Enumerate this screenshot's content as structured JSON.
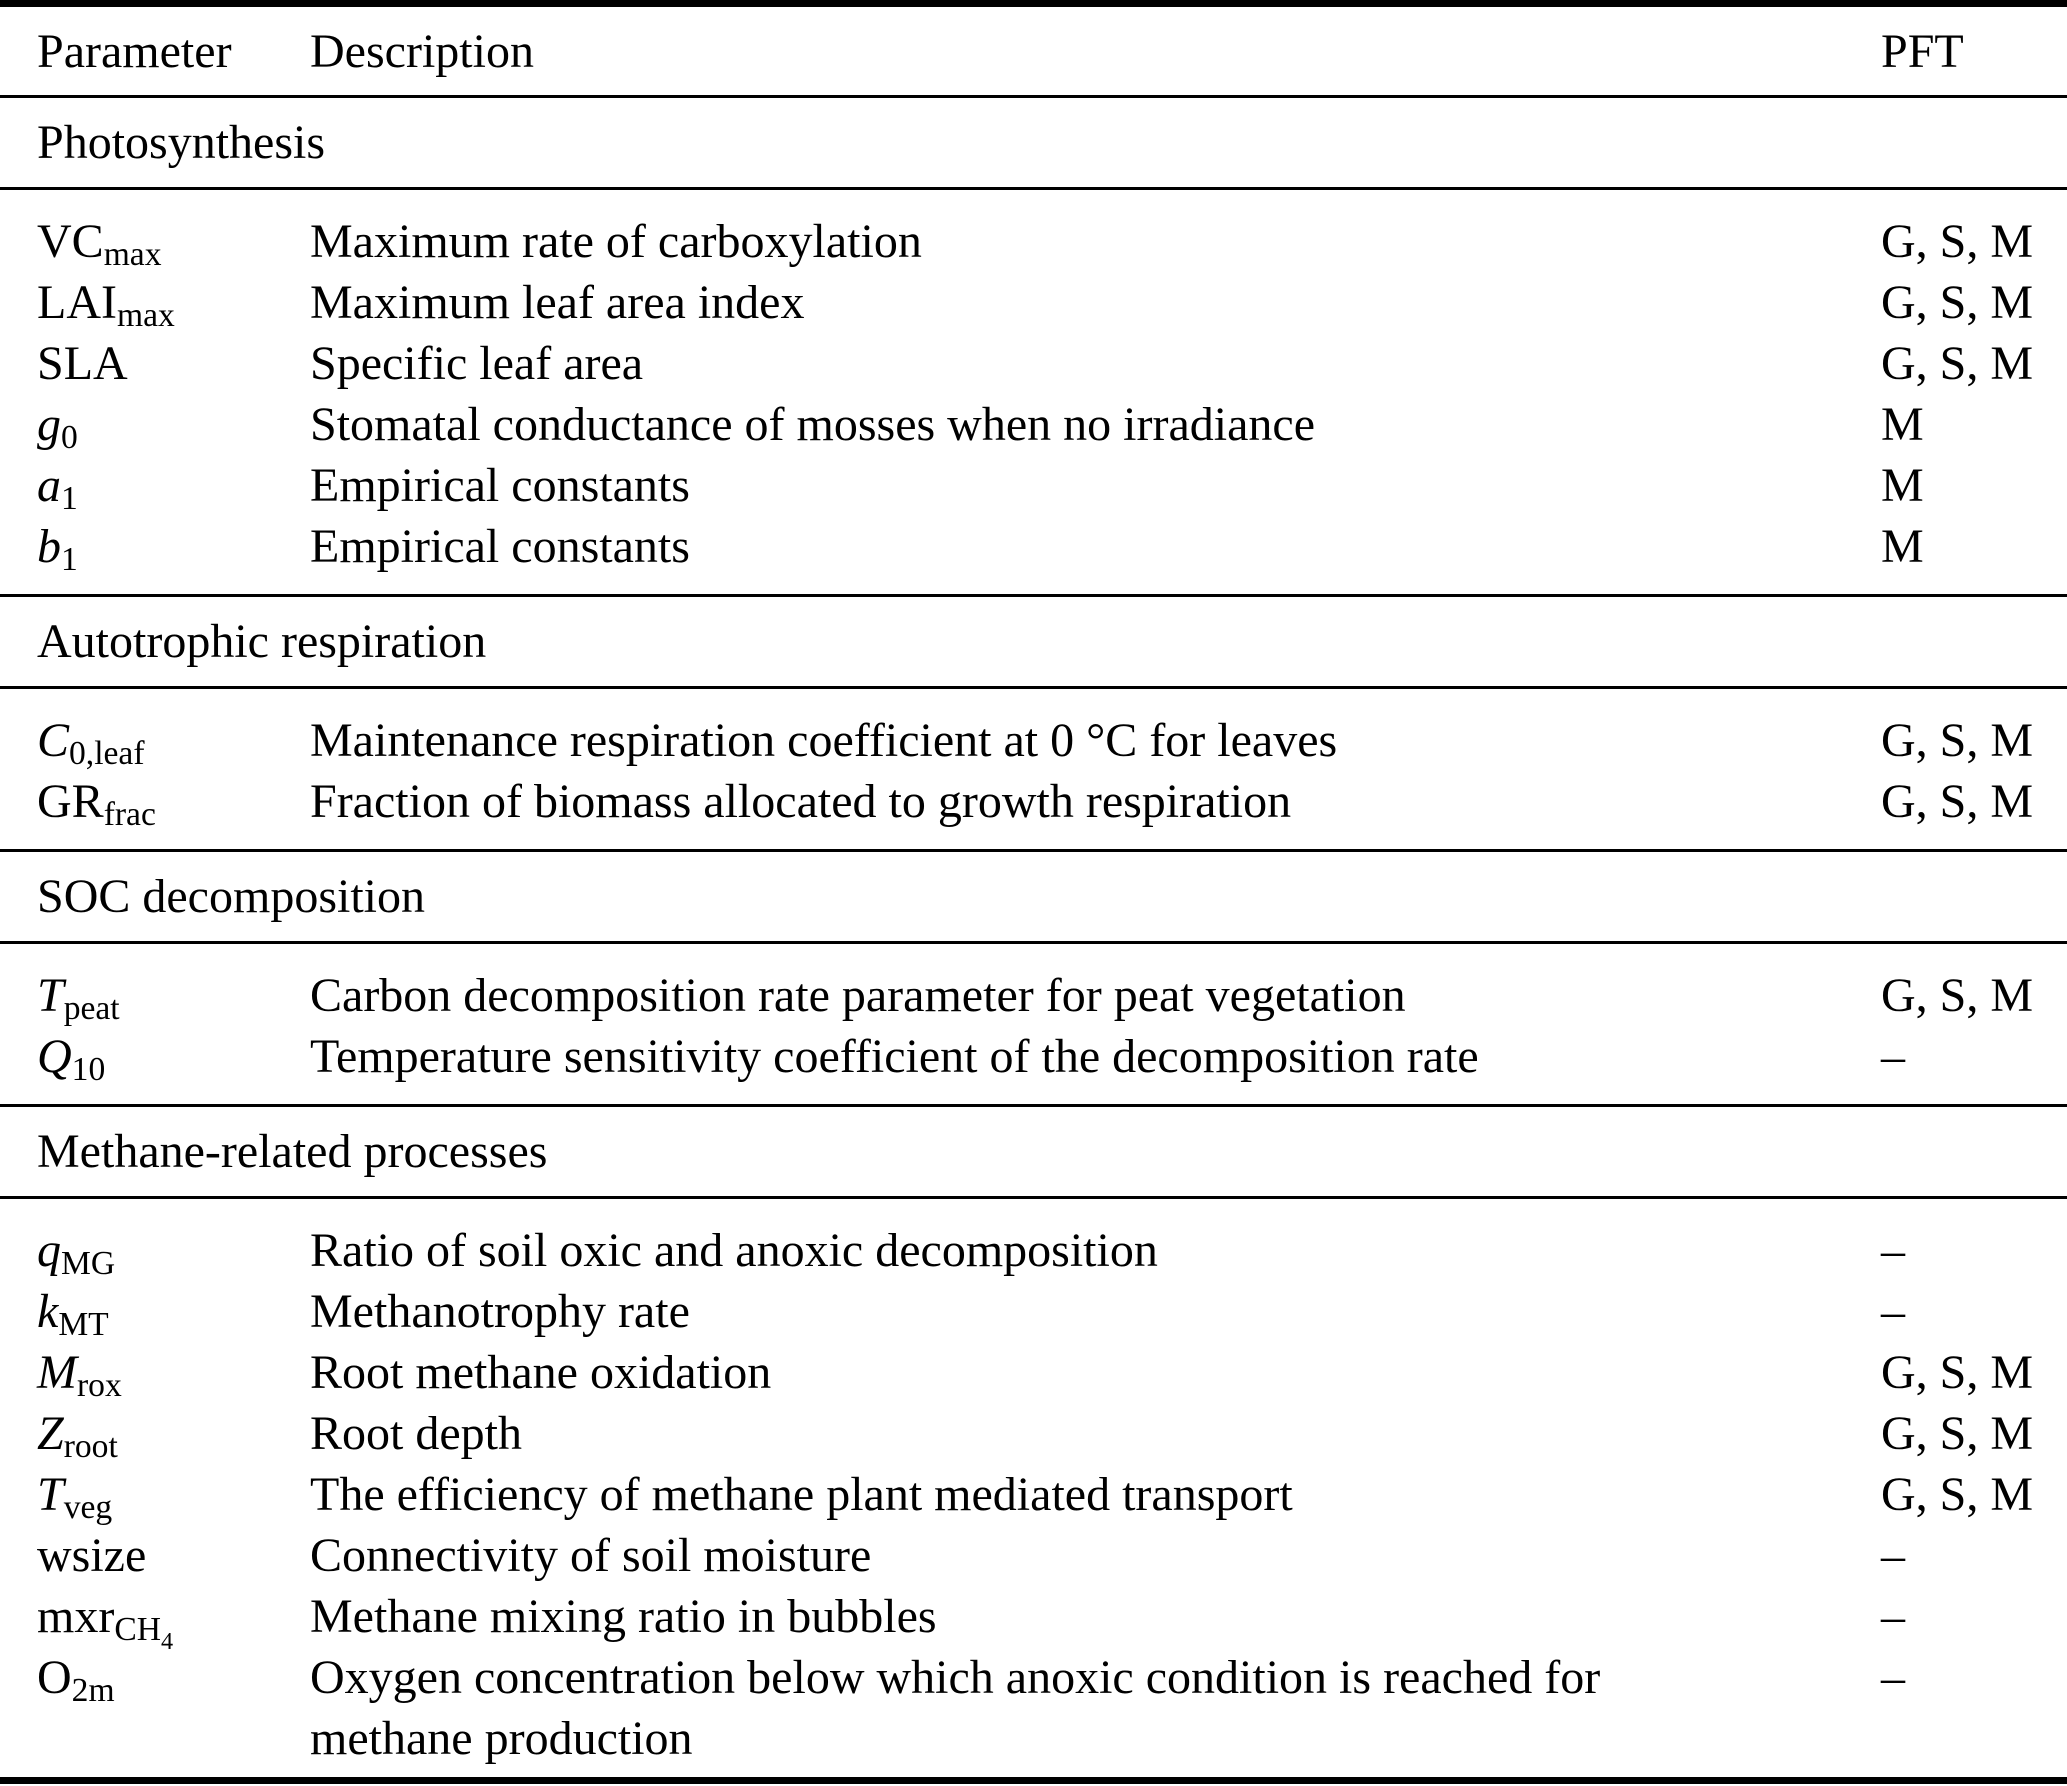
{
  "table": {
    "header": {
      "parameter": "Parameter",
      "description": "Description",
      "pft": "PFT"
    },
    "sections": [
      {
        "title": "Photosynthesis",
        "rows": [
          {
            "p": "VC",
            "it": false,
            "sub": "max",
            "sub2": "",
            "desc": "Maximum rate of carboxylation",
            "desc2": "",
            "pft": "G, S, M"
          },
          {
            "p": "LAI",
            "it": false,
            "sub": "max",
            "sub2": "",
            "desc": "Maximum leaf area index",
            "desc2": "",
            "pft": "G, S, M"
          },
          {
            "p": "SLA",
            "it": false,
            "sub": "",
            "sub2": "",
            "desc": "Specific leaf area",
            "desc2": "",
            "pft": "G, S, M"
          },
          {
            "p": "g",
            "it": true,
            "sub": "0",
            "sub2": "",
            "desc": "Stomatal conductance of mosses when no irradiance",
            "desc2": "",
            "pft": "M"
          },
          {
            "p": "a",
            "it": true,
            "sub": "1",
            "sub2": "",
            "desc": "Empirical constants",
            "desc2": "",
            "pft": "M"
          },
          {
            "p": "b",
            "it": true,
            "sub": "1",
            "sub2": "",
            "desc": "Empirical constants",
            "desc2": "",
            "pft": "M"
          }
        ]
      },
      {
        "title": "Autotrophic respiration",
        "rows": [
          {
            "p": "C",
            "it": true,
            "sub": "0,leaf",
            "sub2": "",
            "desc": "Maintenance respiration coefficient at 0 °C for leaves",
            "desc2": "",
            "pft": "G, S, M"
          },
          {
            "p": "GR",
            "it": false,
            "sub": "frac",
            "sub2": "",
            "desc": "Fraction of biomass allocated to growth respiration",
            "desc2": "",
            "pft": "G, S, M"
          }
        ]
      },
      {
        "title": "SOC decomposition",
        "rows": [
          {
            "p": "T",
            "it": true,
            "sub": "peat",
            "sub2": "",
            "desc": "Carbon decomposition rate parameter for peat vegetation",
            "desc2": "",
            "pft": "G, S, M"
          },
          {
            "p": "Q",
            "it": true,
            "sub": "10",
            "sub2": "",
            "desc": "Temperature sensitivity coefficient of the decomposition rate",
            "desc2": "",
            "pft": "–"
          }
        ]
      },
      {
        "title": "Methane-related processes",
        "rows": [
          {
            "p": "q",
            "it": true,
            "sub": "MG",
            "sub2": "",
            "desc": "Ratio of soil oxic and anoxic decomposition",
            "desc2": "",
            "pft": "–"
          },
          {
            "p": "k",
            "it": true,
            "sub": "MT",
            "sub2": "",
            "desc": "Methanotrophy rate",
            "desc2": "",
            "pft": "–"
          },
          {
            "p": "M",
            "it": true,
            "sub": "rox",
            "sub2": "",
            "desc": "Root methane oxidation",
            "desc2": "",
            "pft": "G, S, M"
          },
          {
            "p": "Z",
            "it": true,
            "sub": "root",
            "sub2": "",
            "desc": "Root depth",
            "desc2": "",
            "pft": "G, S, M"
          },
          {
            "p": "T",
            "it": true,
            "sub": "veg",
            "sub2": "",
            "desc": "The efficiency of methane plant mediated transport",
            "desc2": "",
            "pft": "G, S, M"
          },
          {
            "p": "wsize",
            "it": false,
            "sub": "",
            "sub2": "",
            "desc": "Connectivity of soil moisture",
            "desc2": "",
            "pft": "–"
          },
          {
            "p": "mxr",
            "it": false,
            "sub": "CH",
            "sub2": "4",
            "desc": "Methane mixing ratio in bubbles",
            "desc2": "",
            "pft": "–"
          },
          {
            "p": "O",
            "it": false,
            "sub": "2m",
            "sub2": "",
            "desc": "Oxygen concentration below which anoxic condition is reached for",
            "desc2": "methane production",
            "pft": "–"
          }
        ]
      }
    ]
  }
}
